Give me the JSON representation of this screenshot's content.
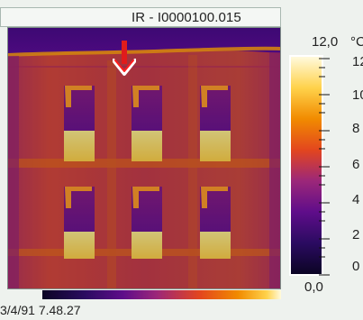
{
  "window": {
    "title": "IR - I0000100.015"
  },
  "thermogram": {
    "capture_datetime": "3/4/91 7.48.27",
    "marker_icon": "down-arrow-icon",
    "palette_colors": [
      "#0b0424",
      "#2b0b61",
      "#5f0d8a",
      "#9c2779",
      "#e3461e",
      "#f18b00",
      "#ffd24b",
      "#fffadd"
    ]
  },
  "scale": {
    "max_value": "12,0",
    "unit": "°C",
    "min_value": "0,0",
    "tick_labels": [
      "12",
      "10",
      "8",
      "6",
      "4",
      "2",
      "0"
    ]
  }
}
